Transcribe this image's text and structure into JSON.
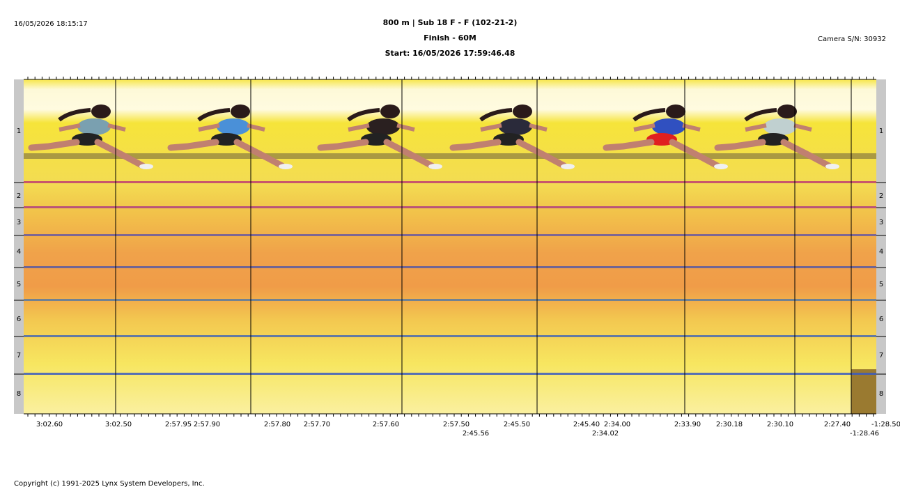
{
  "header": {
    "printed_at": "16/05/2026 18:15:17",
    "title": "800 m | Sub 18 F - F (102-21-2)",
    "subtitle": "Finish - 60M",
    "start": "Start: 16/05/2026 17:59:46.48",
    "camera": "Camera S/N: 30932"
  },
  "lanes": [
    "1",
    "2",
    "3",
    "4",
    "5",
    "6",
    "7",
    "8"
  ],
  "time_labels": [
    "3:02.60",
    "3:02.50",
    "2:57.95",
    "2:57.90",
    "2:57.80",
    "2:57.70",
    "2:57.60",
    "2:57.50",
    "2:45.50",
    "2:45.40",
    "2:34.00",
    "2:33.90",
    "2:30.18",
    "2:30.10",
    "2:27.40",
    "-1:28.50"
  ],
  "time_labels_row2": [
    "2:45.56",
    "2:34.02",
    "-1:28.46"
  ],
  "footer": "Copyright (c) 1991-2025 Lynx System Developers, Inc."
}
